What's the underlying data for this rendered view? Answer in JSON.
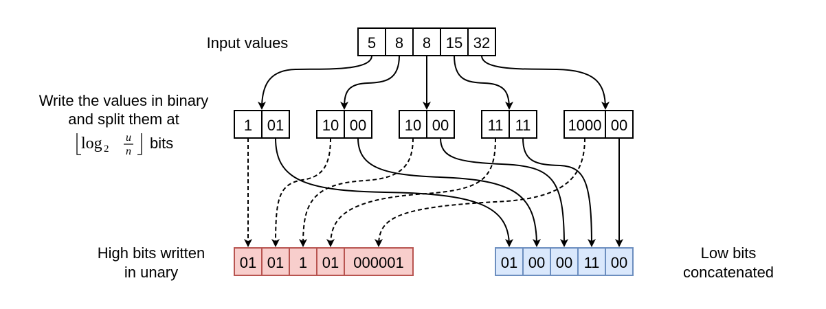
{
  "labels": {
    "input": "Input values",
    "split_line1": "Write the values in binary",
    "split_line2": "and split them at",
    "split_bits": "bits",
    "high_line1": "High bits written",
    "high_line2": "in unary",
    "low_line1": "Low bits",
    "low_line2": "concatenated"
  },
  "formula": {
    "log": "log",
    "base": "2",
    "numerator": "u",
    "denominator": "n"
  },
  "input_values": [
    "5",
    "8",
    "8",
    "15",
    "32"
  ],
  "split": [
    {
      "high": "1",
      "low": "01"
    },
    {
      "high": "10",
      "low": "00"
    },
    {
      "high": "10",
      "low": "00"
    },
    {
      "high": "11",
      "low": "11"
    },
    {
      "high": "1000",
      "low": "00"
    }
  ],
  "high_bits": [
    "01",
    "01",
    "1",
    "01",
    "000001"
  ],
  "low_bits": [
    "01",
    "00",
    "00",
    "11",
    "00"
  ],
  "colors": {
    "high_fill": "#f8cecc",
    "high_stroke": "#b85450",
    "low_fill": "#dae8fc",
    "low_stroke": "#6c8ebf"
  }
}
